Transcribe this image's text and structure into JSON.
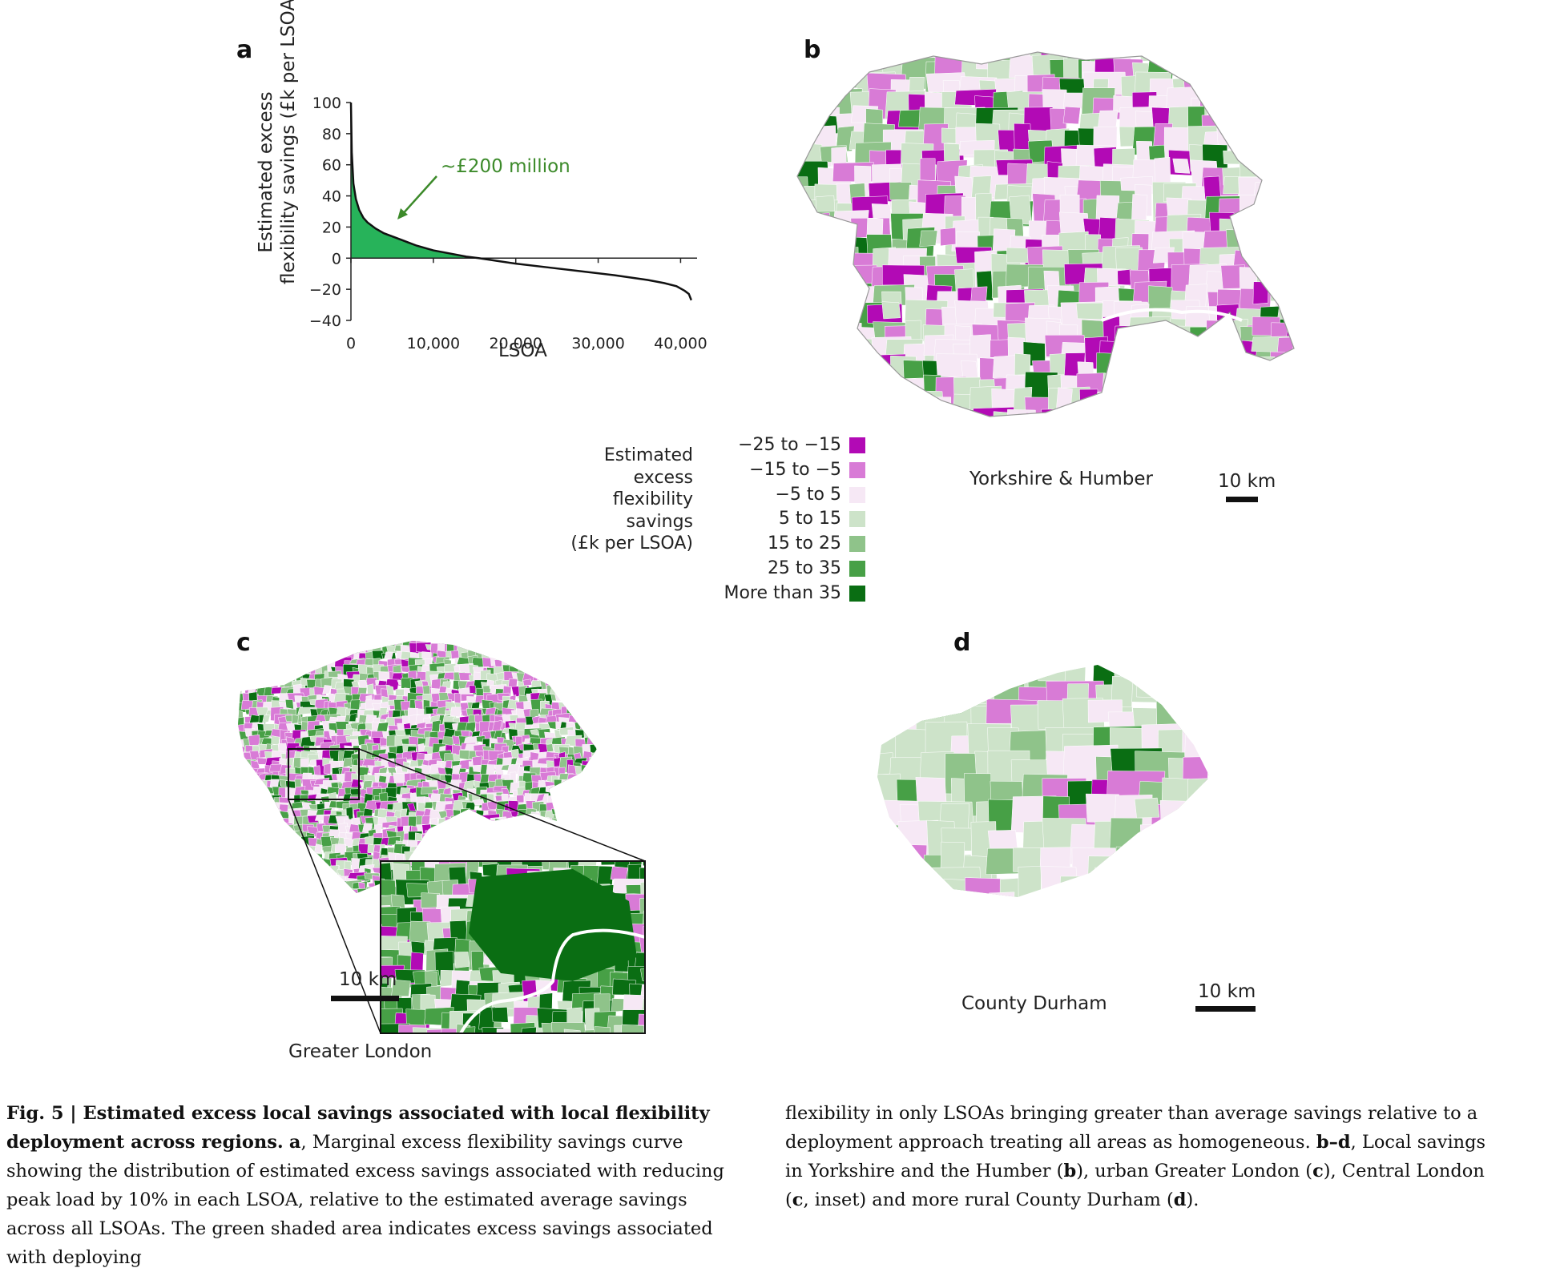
{
  "panels": {
    "a": {
      "letter": "a"
    },
    "b": {
      "letter": "b",
      "region": "Yorkshire & Humber",
      "scale": "10 km"
    },
    "c": {
      "letter": "c",
      "region": "Greater London",
      "scale": "10 km"
    },
    "d": {
      "letter": "d",
      "region": "County Durham",
      "scale": "10 km"
    }
  },
  "chart_data": {
    "type": "area",
    "ylabel_line1": "Estimated excess",
    "ylabel_line2": "flexibility savings (£k per LSOA)",
    "xlabel": "LSOA",
    "annotation": "~£200 million",
    "xlim": [
      0,
      42000
    ],
    "ylim": [
      -40,
      100
    ],
    "xticks": [
      "0",
      "10,000",
      "20,000",
      "30,000",
      "40,000"
    ],
    "yticks": [
      "100",
      "80",
      "60",
      "40",
      "20",
      "0",
      "−20",
      "−40"
    ],
    "series": [
      {
        "x": [
          0,
          100,
          300,
          600,
          1000,
          1500,
          2000,
          3000,
          4000,
          5000,
          6000,
          8000,
          10000,
          12000,
          14000,
          15500,
          18000,
          20000,
          24000,
          28000,
          32000,
          36000,
          38000,
          39500,
          40500,
          41000,
          41300
        ],
        "values": [
          100,
          68,
          48,
          38,
          31,
          26,
          23,
          19,
          16,
          14,
          12,
          8,
          5,
          3,
          1,
          0,
          -2,
          -3.5,
          -6,
          -8.5,
          -11,
          -14,
          -16,
          -18,
          -21,
          -23,
          -27
        ]
      }
    ],
    "shaded_region": "positive savings (green)"
  },
  "legend": {
    "title_lines": [
      "Estimated",
      "excess",
      "flexibility",
      "savings",
      "(£k per LSOA)"
    ],
    "items": [
      {
        "label": "−25 to −15",
        "color": "#b20ab5"
      },
      {
        "label": "−15 to −5",
        "color": "#d87bd6"
      },
      {
        "label": "−5 to 5",
        "color": "#f6e8f5"
      },
      {
        "label": "5 to 15",
        "color": "#cde3c9"
      },
      {
        "label": "15 to 25",
        "color": "#8fc38a"
      },
      {
        "label": "25 to 35",
        "color": "#47a046"
      },
      {
        "label": "More than 35",
        "color": "#0a6e13"
      }
    ]
  },
  "caption": {
    "fig": "Fig. 5 | ",
    "title": "Estimated excess local savings associated with local flexibility deployment across regions.",
    "a_label": "a",
    "a_text": ", Marginal excess flexibility savings curve showing the distribution of estimated excess savings associated with reducing peak load by 10% in each LSOA, relative to the estimated average savings across all LSOAs. The green shaded area indicates excess savings associated with deploying flexibility in only LSOAs bringing greater than average savings relative to a deployment approach treating all areas as homogeneous. ",
    "bd_label": "b–d",
    "bd_text": ", Local savings in Yorkshire and the Humber (",
    "b_ref": "b",
    "t2": "), urban Greater London (",
    "c_ref": "c",
    "t3": "), Central London (",
    "c_ref2": "c",
    "t4": ", inset) and more rural County Durham (",
    "d_ref": "d",
    "t5": ")."
  }
}
